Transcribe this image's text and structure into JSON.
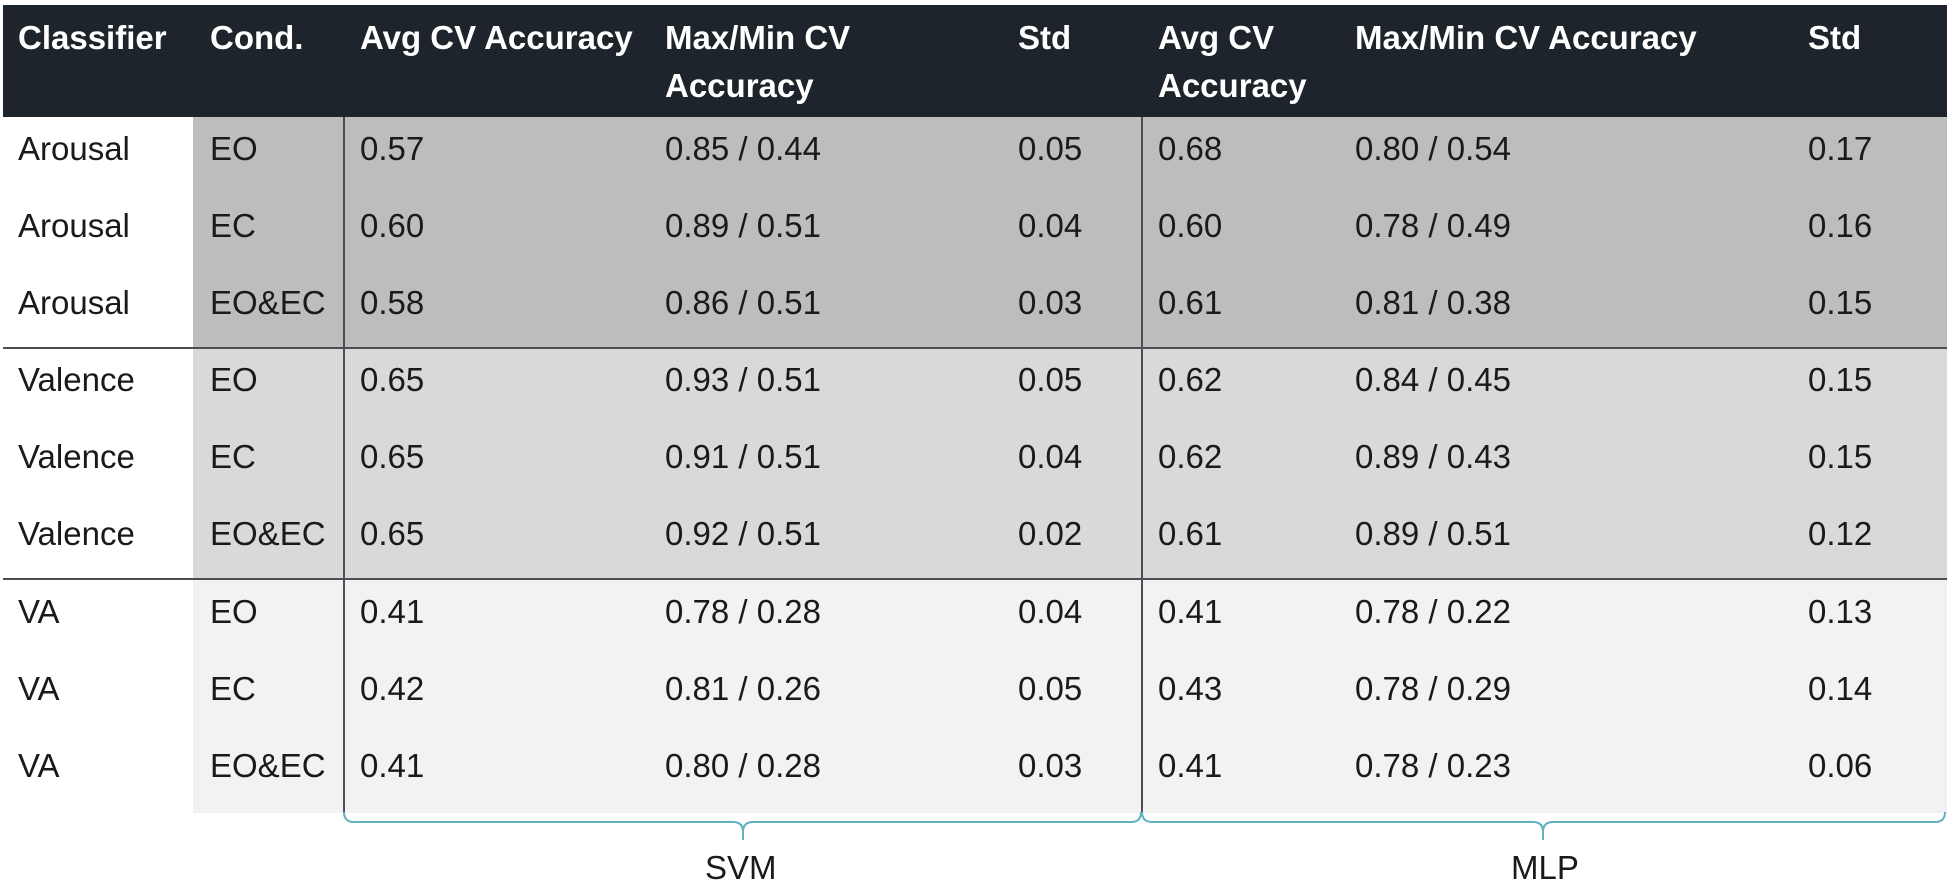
{
  "header": {
    "classifier": "Classifier",
    "cond": "Cond.",
    "svm_avg_l1": "Avg CV Accuracy",
    "svm_maxmin_l1": "Max/Min CV",
    "svm_maxmin_l2": "Accuracy",
    "svm_std": "Std",
    "mlp_avg_l1": "Avg CV",
    "mlp_avg_l2": "Accuracy",
    "mlp_maxmin_l1": "Max/Min CV Accuracy",
    "mlp_std": "Std"
  },
  "rows": [
    [
      "Arousal",
      "EO",
      "0.57",
      "0.85 / 0.44",
      "0.05",
      "0.68",
      "0.80 / 0.54",
      "0.17"
    ],
    [
      "Arousal",
      "EC",
      "0.60",
      "0.89 / 0.51",
      "0.04",
      "0.60",
      "0.78 / 0.49",
      "0.16"
    ],
    [
      "Arousal",
      "EO&EC",
      "0.58",
      "0.86 / 0.51",
      "0.03",
      "0.61",
      "0.81 / 0.38",
      "0.15"
    ],
    [
      "Valence",
      "EO",
      "0.65",
      "0.93 / 0.51",
      "0.05",
      "0.62",
      "0.84 / 0.45",
      "0.15"
    ],
    [
      "Valence",
      "EC",
      "0.65",
      "0.91 / 0.51",
      "0.04",
      "0.62",
      "0.89 / 0.43",
      "0.15"
    ],
    [
      "Valence",
      "EO&EC",
      "0.65",
      "0.92 / 0.51",
      "0.02",
      "0.61",
      "0.89 / 0.51",
      "0.12"
    ],
    [
      "VA",
      "EO",
      "0.41",
      "0.78 / 0.28",
      "0.04",
      "0.41",
      "0.78 / 0.22",
      "0.13"
    ],
    [
      "VA",
      "EC",
      "0.42",
      "0.81 / 0.26",
      "0.05",
      "0.43",
      "0.78 / 0.29",
      "0.14"
    ],
    [
      "VA",
      "EO&EC",
      "0.41",
      "0.80 / 0.28",
      "0.03",
      "0.41",
      "0.78 / 0.23",
      "0.06"
    ]
  ],
  "groups": {
    "svm": "SVM",
    "mlp": "MLP"
  },
  "colors": {
    "header_bg": "#1e242b",
    "arousal_bg": "#bdbdbd",
    "valence_bg": "#d9d9d9",
    "va_bg": "#f2f2f2",
    "brace": "#5fb3bf"
  }
}
